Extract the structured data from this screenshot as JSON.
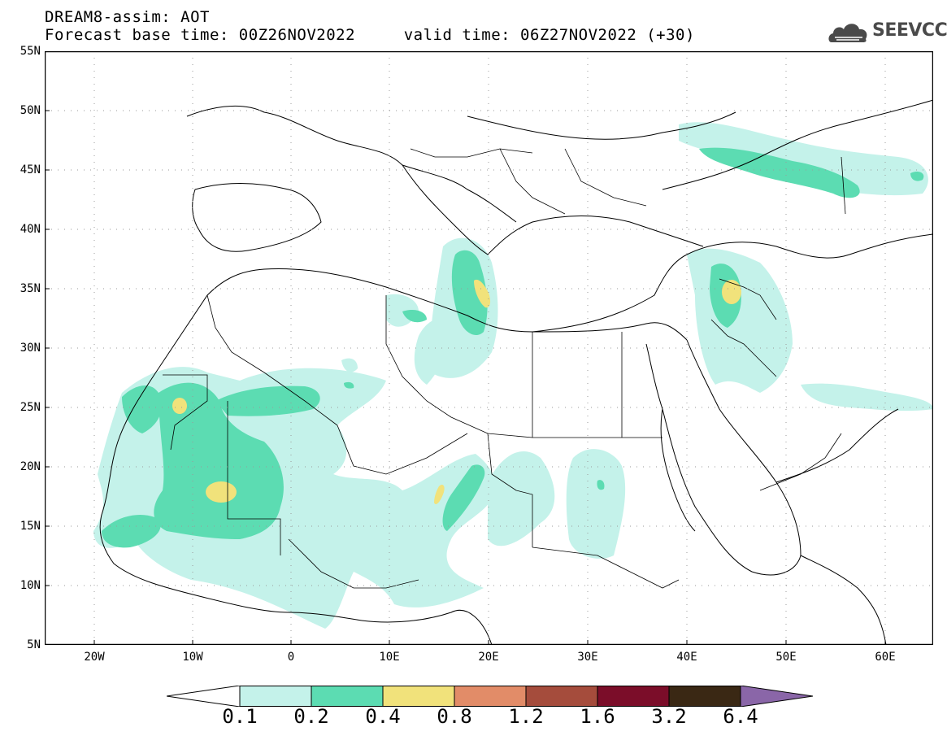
{
  "header": {
    "model_line": "DREAM8-assim: AOT",
    "time_line": "Forecast base time: 00Z26NOV2022     valid time: 06Z27NOV2022 (+30)"
  },
  "logo": {
    "text": "SEEVCCC",
    "icon": "cloud-icon"
  },
  "map": {
    "lat_labels": [
      "55N",
      "50N",
      "45N",
      "40N",
      "35N",
      "30N",
      "25N",
      "20N",
      "15N",
      "10N",
      "5N"
    ],
    "lon_labels": [
      "20W",
      "10W",
      "0",
      "10E",
      "20E",
      "30E",
      "40E",
      "50E",
      "60E"
    ]
  },
  "colorbar": {
    "labels": [
      "0.1",
      "0.2",
      "0.4",
      "0.8",
      "1.2",
      "1.6",
      "3.2",
      "6.4"
    ],
    "colors": [
      "#ffffff",
      "#c4f2ea",
      "#5cdcb2",
      "#f1e27b",
      "#e28c68",
      "#a54c3c",
      "#7b0d29",
      "#3a2814",
      "#8a66a8"
    ]
  }
}
